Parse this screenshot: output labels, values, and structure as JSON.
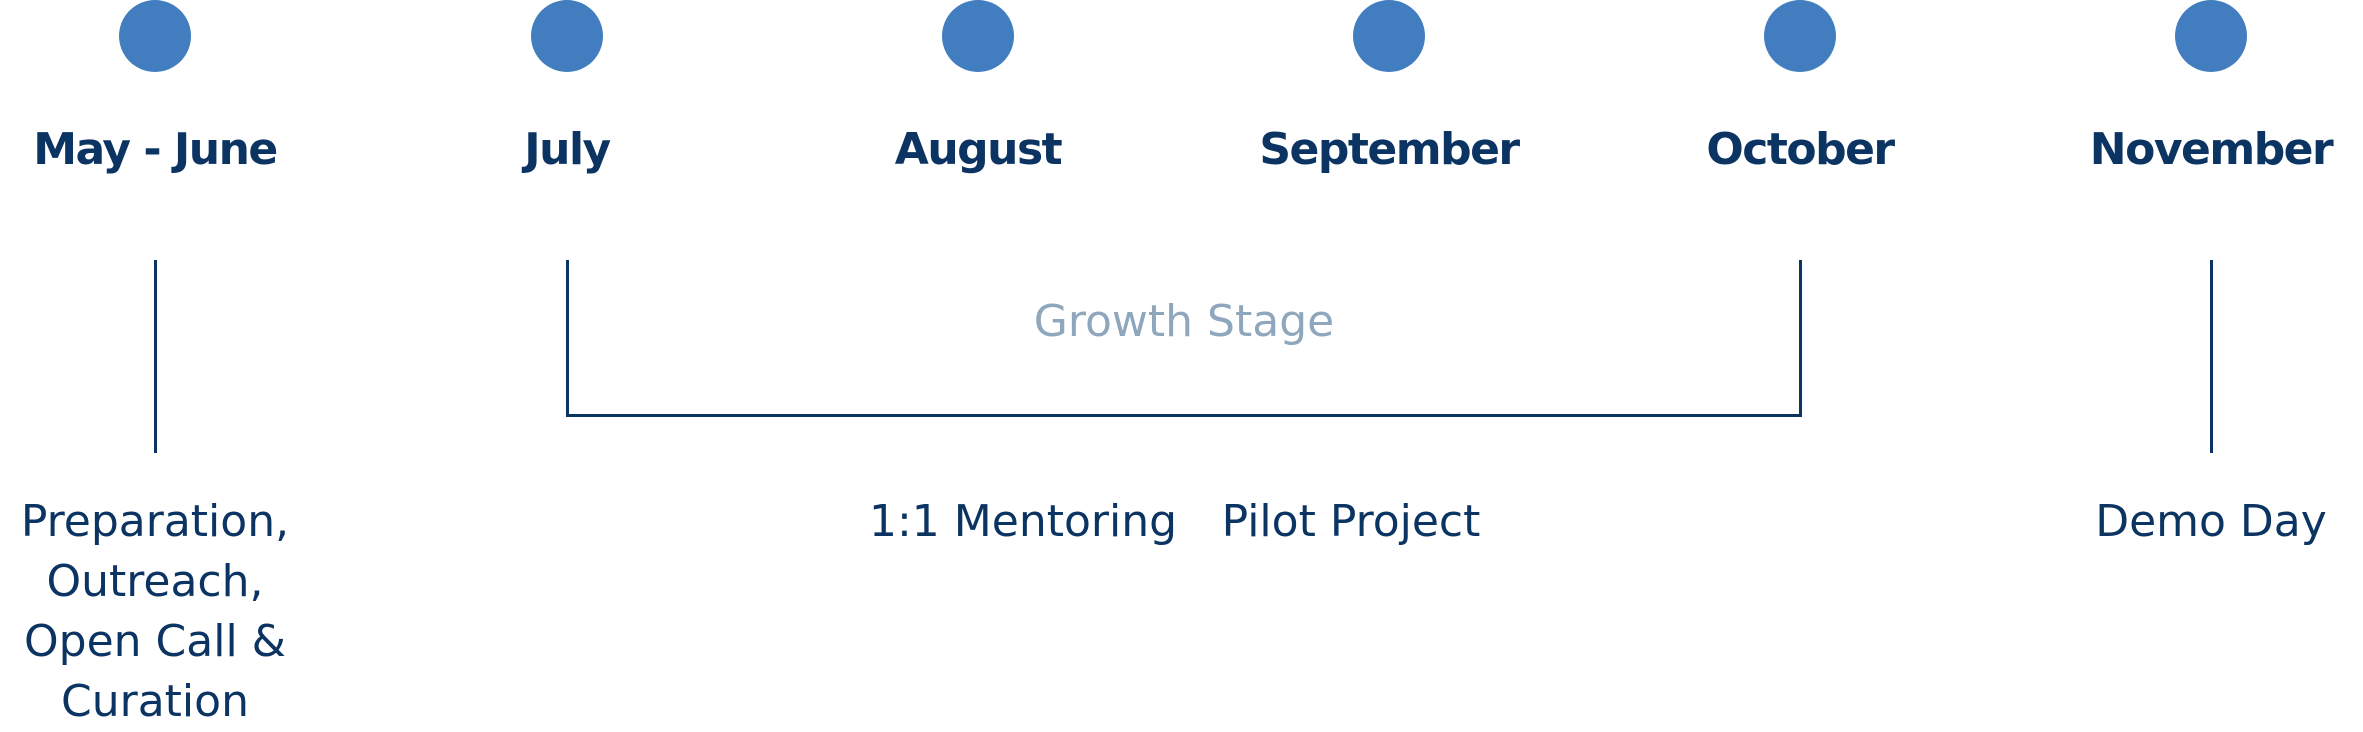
{
  "colors": {
    "dot": "#427dbf",
    "heading": "#0b3462",
    "line": "#0b3462",
    "stage_label": "#8fa7bd",
    "activity_text": "#0b3462"
  },
  "months": [
    {
      "label": "May - June"
    },
    {
      "label": "July"
    },
    {
      "label": "August"
    },
    {
      "label": "September"
    },
    {
      "label": "October"
    },
    {
      "label": "November"
    }
  ],
  "stage": {
    "label": "Growth Stage",
    "from": "July",
    "to": "October"
  },
  "activities": [
    {
      "label": "Preparation, Outreach, Open Call & Curation",
      "month": "May - June"
    },
    {
      "label": "1:1 Mentoring",
      "month": "August"
    },
    {
      "label": "Pilot Project",
      "month": "September"
    },
    {
      "label": "Demo Day",
      "month": "November"
    }
  ]
}
